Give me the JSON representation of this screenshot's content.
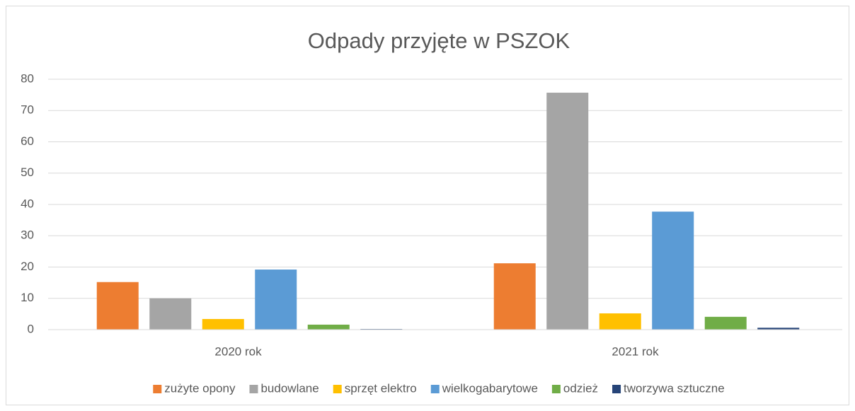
{
  "chart_data": {
    "type": "bar",
    "title": "Odpady przyjęte w PSZOK",
    "categories": [
      "2020 rok",
      "2021 rok"
    ],
    "series": [
      {
        "name": "zużyte opony",
        "color": "#ed7d31",
        "values": [
          15.2,
          21.2
        ]
      },
      {
        "name": "budowlane",
        "color": "#a5a5a5",
        "values": [
          10,
          75.7
        ]
      },
      {
        "name": "sprzęt elektro",
        "color": "#ffc000",
        "values": [
          3.4,
          5.2
        ]
      },
      {
        "name": "wielkogabarytowe",
        "color": "#5b9bd5",
        "values": [
          19.2,
          37.7
        ]
      },
      {
        "name": "odzież",
        "color": "#70ad47",
        "values": [
          1.6,
          4.1
        ]
      },
      {
        "name": "tworzywa sztuczne",
        "color": "#264478",
        "values": [
          0.2,
          0.6
        ]
      }
    ],
    "ylim": [
      0,
      80
    ],
    "yticks": [
      0,
      10,
      20,
      30,
      40,
      50,
      60,
      70,
      80
    ],
    "grid": true,
    "legend": "bottom"
  }
}
